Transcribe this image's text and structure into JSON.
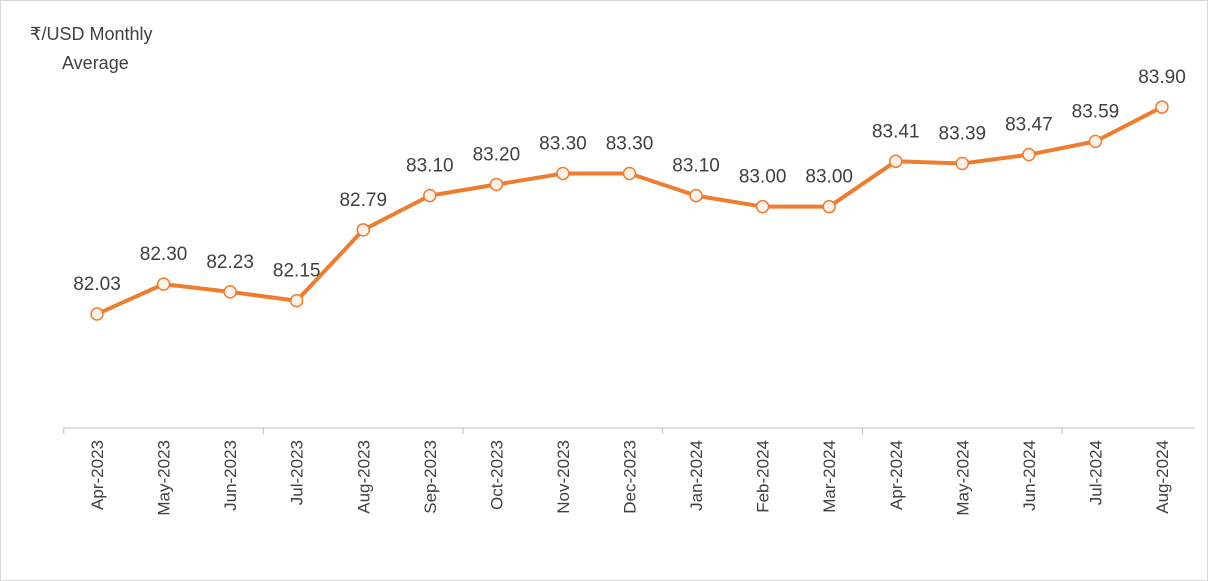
{
  "chart_data": {
    "type": "line",
    "title_lines": [
      "₹/USD Monthly",
      "Average"
    ],
    "categories": [
      "Apr-2023",
      "May-2023",
      "Jun-2023",
      "Jul-2023",
      "Aug-2023",
      "Sep-2023",
      "Oct-2023",
      "Nov-2023",
      "Dec-2023",
      "Jan-2024",
      "Feb-2024",
      "Mar-2024",
      "Apr-2024",
      "May-2024",
      "Jun-2024",
      "Jul-2024",
      "Aug-2024"
    ],
    "values": [
      82.03,
      82.3,
      82.23,
      82.15,
      82.79,
      83.1,
      83.2,
      83.3,
      83.3,
      83.1,
      83.0,
      83.0,
      83.41,
      83.39,
      83.47,
      83.59,
      83.9
    ],
    "value_labels": [
      "82.03",
      "82.30",
      "82.23",
      "82.15",
      "82.79",
      "83.10",
      "83.20",
      "83.30",
      "83.30",
      "83.10",
      "83.00",
      "83.00",
      "83.41",
      "83.39",
      "83.47",
      "83.59",
      "83.90"
    ],
    "color": "#ED7D31",
    "ylim": [
      81,
      84
    ]
  }
}
